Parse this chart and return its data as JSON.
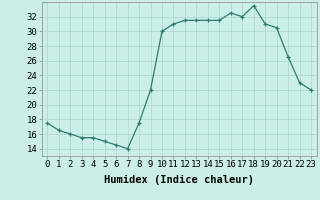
{
  "x": [
    0,
    1,
    2,
    3,
    4,
    5,
    6,
    7,
    8,
    9,
    10,
    11,
    12,
    13,
    14,
    15,
    16,
    17,
    18,
    19,
    20,
    21,
    22,
    23
  ],
  "y": [
    17.5,
    16.5,
    16.0,
    15.5,
    15.5,
    15.0,
    14.5,
    14.0,
    17.5,
    22.0,
    30.0,
    31.0,
    31.5,
    31.5,
    31.5,
    31.5,
    32.5,
    32.0,
    33.5,
    31.0,
    30.5,
    26.5,
    23.0,
    22.0
  ],
  "line_color": "#2d7d6e",
  "marker": "+",
  "marker_size": 3,
  "background_color": "#cceee8",
  "grid_color": "#aad4cc",
  "xlabel": "Humidex (Indice chaleur)",
  "xlim": [
    -0.5,
    23.5
  ],
  "ylim": [
    13,
    34
  ],
  "yticks": [
    14,
    16,
    18,
    20,
    22,
    24,
    26,
    28,
    30,
    32
  ],
  "xticks": [
    0,
    1,
    2,
    3,
    4,
    5,
    6,
    7,
    8,
    9,
    10,
    11,
    12,
    13,
    14,
    15,
    16,
    17,
    18,
    19,
    20,
    21,
    22,
    23
  ],
  "tick_label_fontsize": 6.5,
  "xlabel_fontsize": 7.5
}
